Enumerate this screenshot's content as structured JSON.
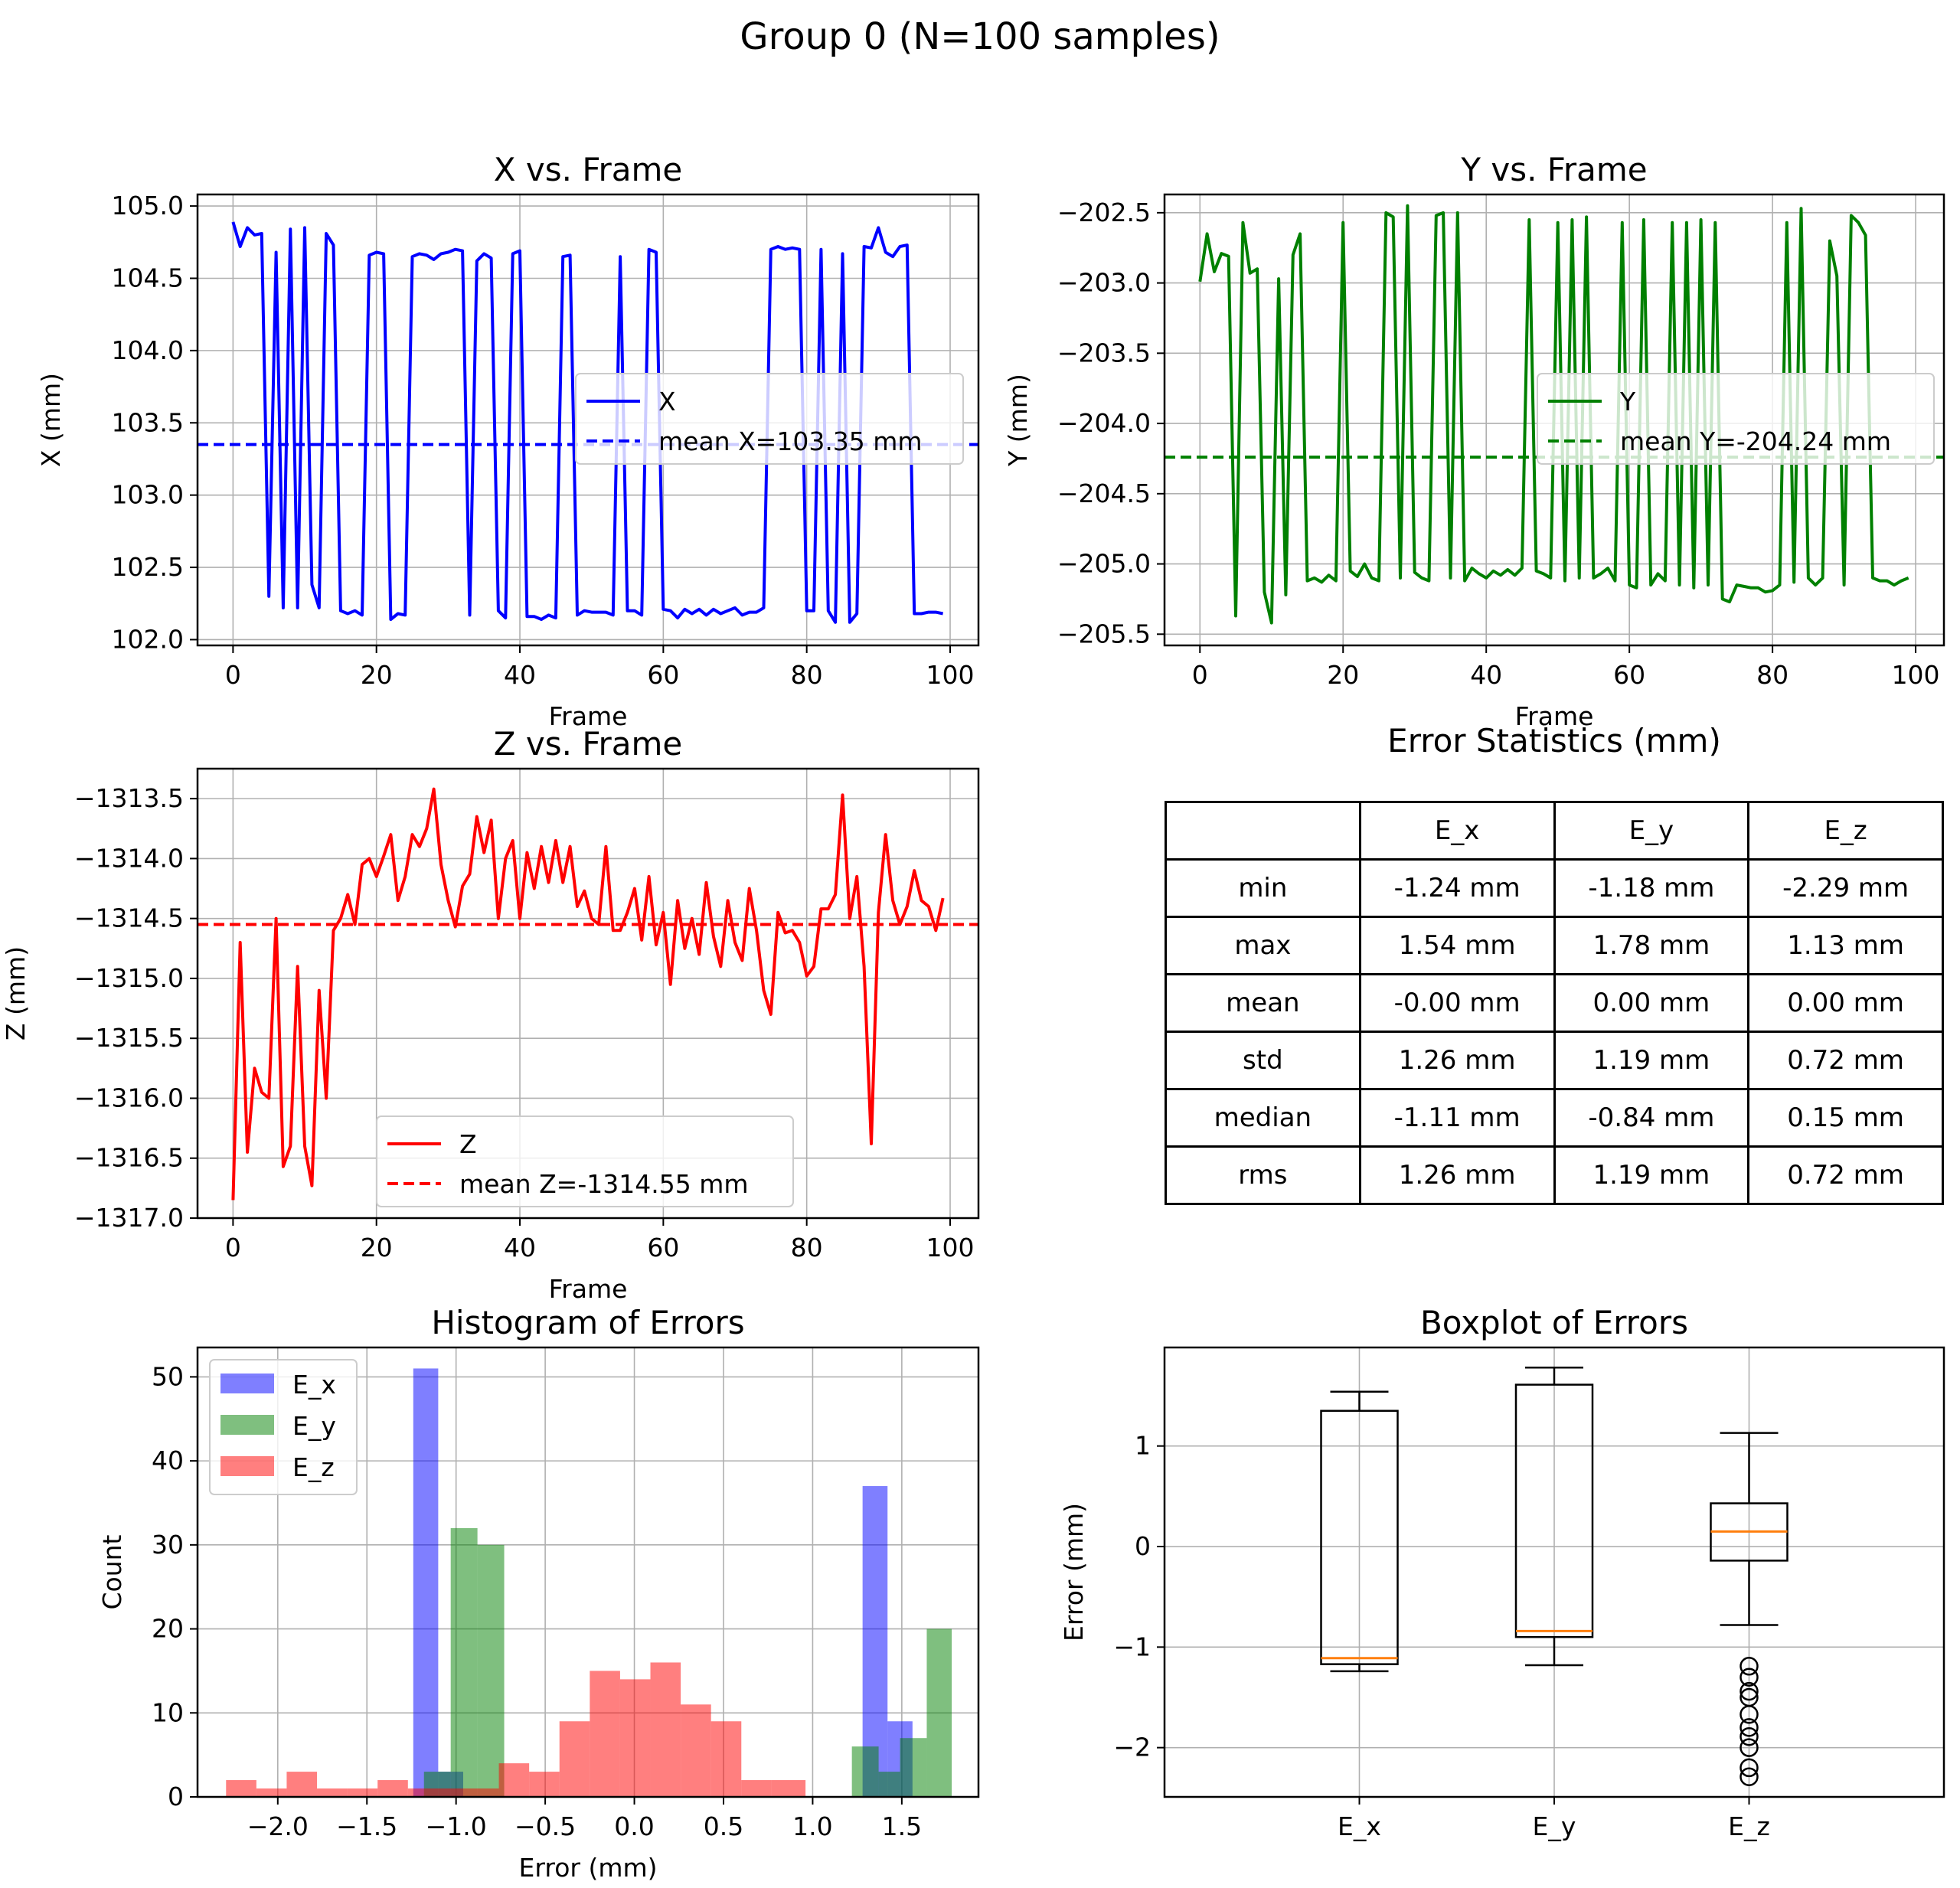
{
  "figure_title": "Group 0 (N=100 samples)",
  "colors": {
    "x": "#0000ff",
    "y": "#008000",
    "z": "#ff0000",
    "grid": "#b0b0b0",
    "median": "#ff7f0e"
  },
  "chart_data": [
    {
      "id": "x",
      "type": "line",
      "title": "X vs. Frame",
      "xlabel": "Frame",
      "ylabel": "X (mm)",
      "xlim": [
        -4.95,
        103.95
      ],
      "ylim": [
        101.96,
        105.08
      ],
      "xticks": [
        0,
        20,
        40,
        60,
        80,
        100
      ],
      "yticks": [
        102.0,
        102.5,
        103.0,
        103.5,
        104.0,
        104.5,
        105.0
      ],
      "ytick_labels": [
        "102.0",
        "102.5",
        "103.0",
        "103.5",
        "104.0",
        "104.5",
        "105.0"
      ],
      "series": [
        {
          "name": "X",
          "values": [
            104.89,
            104.72,
            104.85,
            104.8,
            104.81,
            102.3,
            104.68,
            102.22,
            104.84,
            102.22,
            104.85,
            102.38,
            102.22,
            104.81,
            104.73,
            102.2,
            102.18,
            102.2,
            102.17,
            104.66,
            104.68,
            104.67,
            102.14,
            102.18,
            102.17,
            104.65,
            104.67,
            104.66,
            104.63,
            104.67,
            104.68,
            104.7,
            104.69,
            102.17,
            104.62,
            104.67,
            104.64,
            102.2,
            102.15,
            104.67,
            104.69,
            102.16,
            102.16,
            102.14,
            102.17,
            102.15,
            104.65,
            104.66,
            102.17,
            102.2,
            102.19,
            102.19,
            102.19,
            102.17,
            104.65,
            102.2,
            102.2,
            102.17,
            104.7,
            104.68,
            102.21,
            102.2,
            102.15,
            102.21,
            102.18,
            102.21,
            102.17,
            102.21,
            102.18,
            102.2,
            102.22,
            102.17,
            102.19,
            102.19,
            102.22,
            104.7,
            104.72,
            104.7,
            104.71,
            104.7,
            102.2,
            102.2,
            104.7,
            102.2,
            102.12,
            104.67,
            102.12,
            102.18,
            104.72,
            104.71,
            104.85,
            104.68,
            104.65,
            104.72,
            104.73,
            102.18,
            102.18,
            102.19,
            102.19,
            102.18
          ]
        }
      ],
      "mean": 103.35,
      "legend": [
        "X",
        "mean X=103.35 mm"
      ]
    },
    {
      "id": "y",
      "type": "line",
      "title": "Y vs. Frame",
      "xlabel": "Frame",
      "ylabel": "Y (mm)",
      "xlim": [
        -4.95,
        103.95
      ],
      "ylim": [
        -205.58,
        -202.37
      ],
      "xticks": [
        0,
        20,
        40,
        60,
        80,
        100
      ],
      "yticks": [
        -205.5,
        -205.0,
        -204.5,
        -204.0,
        -203.5,
        -203.0,
        -202.5
      ],
      "ytick_labels": [
        "−205.5",
        "−205.0",
        "−204.5",
        "−204.0",
        "−203.5",
        "−203.0",
        "−202.5"
      ],
      "series": [
        {
          "name": "Y",
          "values": [
            -202.99,
            -202.65,
            -202.92,
            -202.79,
            -202.81,
            -205.37,
            -202.57,
            -202.93,
            -202.9,
            -205.2,
            -205.42,
            -202.97,
            -205.22,
            -202.8,
            -202.65,
            -205.12,
            -205.1,
            -205.13,
            -205.08,
            -205.12,
            -202.57,
            -205.05,
            -205.09,
            -205.0,
            -205.1,
            -205.12,
            -202.5,
            -202.53,
            -205.1,
            -202.45,
            -205.06,
            -205.1,
            -205.12,
            -202.52,
            -202.5,
            -205.1,
            -202.5,
            -205.12,
            -205.03,
            -205.07,
            -205.1,
            -205.05,
            -205.08,
            -205.04,
            -205.08,
            -205.03,
            -202.55,
            -205.05,
            -205.07,
            -205.1,
            -202.57,
            -205.12,
            -202.55,
            -205.1,
            -202.53,
            -205.1,
            -205.07,
            -205.03,
            -205.12,
            -202.57,
            -205.15,
            -205.17,
            -202.55,
            -205.15,
            -205.07,
            -205.12,
            -202.57,
            -205.15,
            -202.57,
            -205.17,
            -202.55,
            -205.15,
            -202.57,
            -205.25,
            -205.27,
            -205.15,
            -205.16,
            -205.17,
            -205.17,
            -205.2,
            -205.19,
            -205.15,
            -202.57,
            -205.13,
            -202.47,
            -205.1,
            -205.15,
            -205.1,
            -202.7,
            -202.95,
            -205.15,
            -202.52,
            -202.57,
            -202.66,
            -205.1,
            -205.12,
            -205.12,
            -205.15,
            -205.12,
            -205.1
          ]
        }
      ],
      "mean": -204.24,
      "legend": [
        "Y",
        "mean Y=-204.24 mm"
      ]
    },
    {
      "id": "z",
      "type": "line",
      "title": "Z vs. Frame",
      "xlabel": "Frame",
      "ylabel": "Z (mm)",
      "xlim": [
        -4.95,
        103.95
      ],
      "ylim": [
        -1317.0,
        -1313.25
      ],
      "xticks": [
        0,
        20,
        40,
        60,
        80,
        100
      ],
      "yticks": [
        -1317.0,
        -1316.5,
        -1316.0,
        -1315.5,
        -1315.0,
        -1314.5,
        -1314.0,
        -1313.5
      ],
      "ytick_labels": [
        "−1317.0",
        "−1316.5",
        "−1316.0",
        "−1315.5",
        "−1315.0",
        "−1314.5",
        "−1314.0",
        "−1313.5"
      ],
      "series": [
        {
          "name": "Z",
          "values": [
            -1316.85,
            -1314.7,
            -1316.45,
            -1315.75,
            -1315.95,
            -1316.0,
            -1314.5,
            -1316.57,
            -1316.4,
            -1314.9,
            -1316.4,
            -1316.73,
            -1315.1,
            -1316.0,
            -1314.6,
            -1314.5,
            -1314.3,
            -1314.55,
            -1314.05,
            -1314.0,
            -1314.15,
            -1313.98,
            -1313.8,
            -1314.35,
            -1314.15,
            -1313.8,
            -1313.9,
            -1313.75,
            -1313.42,
            -1314.05,
            -1314.35,
            -1314.57,
            -1314.23,
            -1314.13,
            -1313.65,
            -1313.95,
            -1313.68,
            -1314.5,
            -1314.0,
            -1313.85,
            -1314.5,
            -1313.95,
            -1314.25,
            -1313.9,
            -1314.2,
            -1313.85,
            -1314.2,
            -1313.9,
            -1314.4,
            -1314.27,
            -1314.5,
            -1314.55,
            -1313.9,
            -1314.6,
            -1314.6,
            -1314.45,
            -1314.25,
            -1314.68,
            -1314.15,
            -1314.72,
            -1314.45,
            -1315.05,
            -1314.35,
            -1314.75,
            -1314.5,
            -1314.8,
            -1314.2,
            -1314.65,
            -1314.9,
            -1314.35,
            -1314.7,
            -1314.85,
            -1314.25,
            -1314.6,
            -1315.1,
            -1315.3,
            -1314.45,
            -1314.62,
            -1314.6,
            -1314.7,
            -1314.98,
            -1314.9,
            -1314.42,
            -1314.42,
            -1314.3,
            -1313.47,
            -1314.5,
            -1314.15,
            -1314.9,
            -1316.38,
            -1314.45,
            -1313.8,
            -1314.35,
            -1314.55,
            -1314.4,
            -1314.1,
            -1314.35,
            -1314.4,
            -1314.6,
            -1314.33
          ]
        }
      ],
      "mean": -1314.55,
      "legend": [
        "Z",
        "mean Z=-1314.55 mm"
      ]
    },
    {
      "id": "hist",
      "type": "bar",
      "title": "Histogram of Errors",
      "xlabel": "Error (mm)",
      "ylabel": "Count",
      "xlim": [
        -2.45,
        1.93
      ],
      "ylim": [
        0,
        53.5
      ],
      "xticks": [
        -2.0,
        -1.5,
        -1.0,
        -0.5,
        0.0,
        0.5,
        1.0,
        1.5
      ],
      "xtick_labels": [
        "−2.0",
        "−1.5",
        "−1.0",
        "−0.5",
        "0.0",
        "0.5",
        "1.0",
        "1.5"
      ],
      "yticks": [
        0,
        10,
        20,
        30,
        40,
        50
      ],
      "series": [
        {
          "name": "E_x",
          "color": "#0000ff",
          "edges": [
            -1.24,
            -1.1,
            -0.96,
            -0.82,
            -0.68,
            -0.54,
            -0.4,
            -0.26,
            -0.12,
            0.02,
            0.16,
            0.3,
            0.44,
            0.58,
            0.72,
            0.86,
            1.0,
            1.14,
            1.28,
            1.42,
            1.56
          ],
          "counts": [
            51,
            3,
            0,
            0,
            0,
            0,
            0,
            0,
            0,
            0,
            0,
            0,
            0,
            0,
            0,
            0,
            0,
            0,
            37,
            9
          ]
        },
        {
          "name": "E_y",
          "color": "#008000",
          "edges": [
            -1.18,
            -1.03,
            -0.88,
            -0.73,
            -0.58,
            -0.43,
            -0.28,
            -0.13,
            0.02,
            0.17,
            0.32,
            0.47,
            0.62,
            0.77,
            0.92,
            1.07,
            1.22,
            1.37,
            1.49,
            1.64,
            1.78
          ],
          "counts": [
            3,
            32,
            30,
            0,
            0,
            0,
            0,
            0,
            0,
            0,
            0,
            0,
            0,
            0,
            0,
            0,
            6,
            3,
            7,
            20
          ]
        },
        {
          "name": "E_z",
          "color": "#ff0000",
          "edges": [
            -2.29,
            -2.12,
            -1.95,
            -1.78,
            -1.61,
            -1.44,
            -1.27,
            -1.1,
            -0.93,
            -0.76,
            -0.59,
            -0.42,
            -0.25,
            -0.08,
            0.09,
            0.26,
            0.43,
            0.6,
            0.77,
            0.96,
            1.13
          ],
          "counts": [
            2,
            1,
            3,
            1,
            1,
            2,
            1,
            1,
            1,
            4,
            3,
            9,
            15,
            14,
            16,
            11,
            9,
            2,
            2,
            0
          ]
        }
      ],
      "legend": [
        "E_x",
        "E_y",
        "E_z"
      ]
    },
    {
      "id": "box",
      "type": "box",
      "title": "Boxplot of Errors",
      "xlabel": "",
      "ylabel": "Error (mm)",
      "ylim": [
        -2.49,
        1.98
      ],
      "yticks": [
        -2,
        -1,
        0,
        1
      ],
      "ytick_labels": [
        "−2",
        "−1",
        "0",
        "1"
      ],
      "categories": [
        "E_x",
        "E_y",
        "E_z"
      ],
      "boxes": [
        {
          "name": "E_x",
          "whislo": -1.24,
          "q1": -1.17,
          "med": -1.11,
          "q3": 1.35,
          "whishi": 1.54,
          "fliers": []
        },
        {
          "name": "E_y",
          "whislo": -1.18,
          "q1": -0.9,
          "med": -0.84,
          "q3": 1.61,
          "whishi": 1.78,
          "fliers": []
        },
        {
          "name": "E_z",
          "whislo": -0.78,
          "q1": -0.14,
          "med": 0.15,
          "q3": 0.43,
          "whishi": 1.13,
          "fliers": [
            -1.19,
            -1.3,
            -1.44,
            -1.5,
            -1.67,
            -1.8,
            -1.89,
            -2.0,
            -2.2,
            -2.29
          ]
        }
      ]
    }
  ],
  "stats_table": {
    "title": "Error Statistics (mm)",
    "columns": [
      "",
      "E_x",
      "E_y",
      "E_z"
    ],
    "rows": [
      [
        "min",
        "-1.24 mm",
        "-1.18 mm",
        "-2.29 mm"
      ],
      [
        "max",
        "1.54 mm",
        "1.78 mm",
        "1.13 mm"
      ],
      [
        "mean",
        "-0.00 mm",
        "0.00 mm",
        "0.00 mm"
      ],
      [
        "std",
        "1.26 mm",
        "1.19 mm",
        "0.72 mm"
      ],
      [
        "median",
        "-1.11 mm",
        "-0.84 mm",
        "0.15 mm"
      ],
      [
        "rms",
        "1.26 mm",
        "1.19 mm",
        "0.72 mm"
      ]
    ]
  }
}
